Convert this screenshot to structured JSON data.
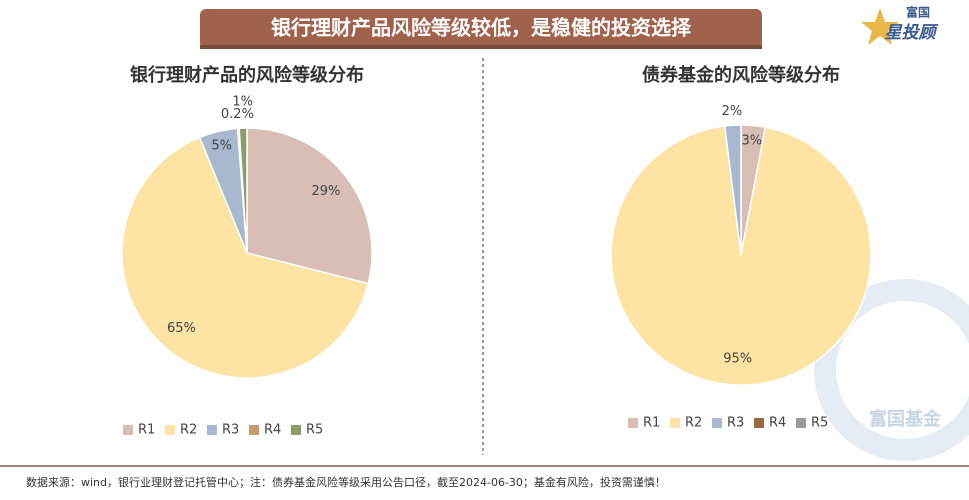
{
  "header": {
    "title": "银行理财产品风险等级较低，是稳健的投资选择"
  },
  "logo": {
    "top": "富国",
    "bottom": "星投顾"
  },
  "watermark": "富国基金",
  "footer": "数据来源：wind，银行业理财登记托管中心；注：债券基金风险等级采用公告口径，截至2024-06-30；基金有风险，投资需谨慎！",
  "chart_data": [
    {
      "type": "pie",
      "title": "银行理财产品的风险等级分布",
      "categories": [
        "R1",
        "R2",
        "R3",
        "R4",
        "R5"
      ],
      "values": [
        29,
        65,
        5,
        0.2,
        1
      ],
      "value_labels": [
        "29%",
        "65%",
        "5%",
        "0.2%",
        "1%"
      ],
      "colors": [
        "#d8beb4",
        "#fde3a4",
        "#a7b8cf",
        "#c29a74",
        "#8e9c6c"
      ],
      "legend": "bottom"
    },
    {
      "type": "pie",
      "title": "债券基金的风险等级分布",
      "categories": [
        "R1",
        "R2",
        "R3",
        "R4",
        "R5"
      ],
      "values": [
        3,
        95,
        2,
        null,
        null
      ],
      "value_labels": [
        "3%",
        "95%",
        "2%",
        null,
        null
      ],
      "colors": [
        "#d8beb4",
        "#fde3a4",
        "#a7b8cf",
        "#9a6a3c",
        "#9b9b9b"
      ],
      "legend": "bottom"
    }
  ]
}
